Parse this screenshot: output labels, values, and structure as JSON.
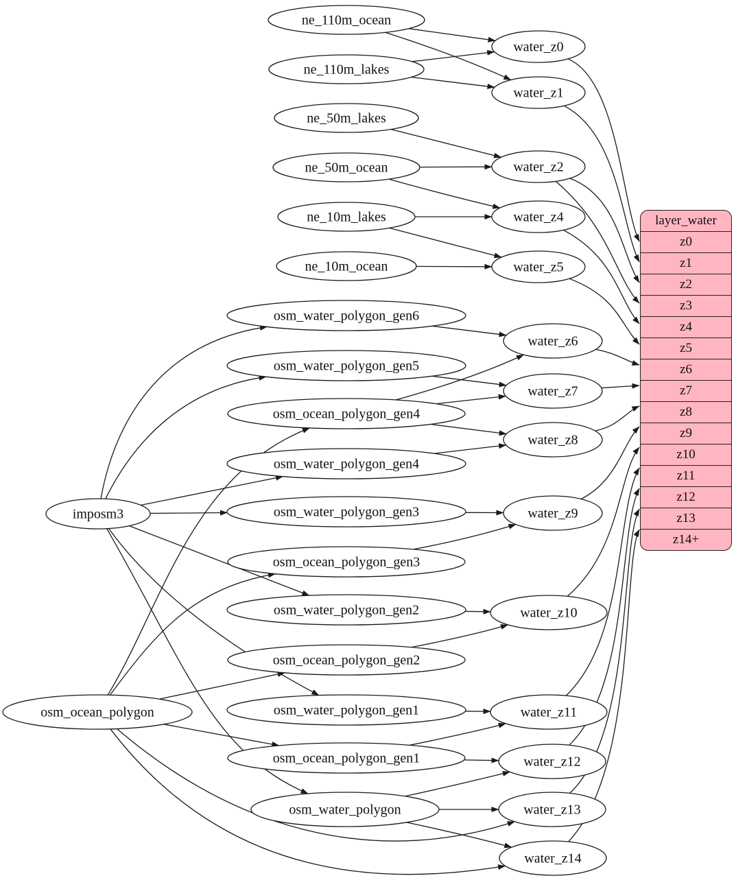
{
  "nodes": [
    {
      "id": "ne_110m_ocean",
      "label": "ne_110m_ocean"
    },
    {
      "id": "ne_110m_lakes",
      "label": "ne_110m_lakes"
    },
    {
      "id": "ne_50m_lakes",
      "label": "ne_50m_lakes"
    },
    {
      "id": "ne_50m_ocean",
      "label": "ne_50m_ocean"
    },
    {
      "id": "ne_10m_lakes",
      "label": "ne_10m_lakes"
    },
    {
      "id": "ne_10m_ocean",
      "label": "ne_10m_ocean"
    },
    {
      "id": "osm_water_polygon_gen6",
      "label": "osm_water_polygon_gen6"
    },
    {
      "id": "osm_water_polygon_gen5",
      "label": "osm_water_polygon_gen5"
    },
    {
      "id": "osm_ocean_polygon_gen4",
      "label": "osm_ocean_polygon_gen4"
    },
    {
      "id": "osm_water_polygon_gen4",
      "label": "osm_water_polygon_gen4"
    },
    {
      "id": "osm_water_polygon_gen3",
      "label": "osm_water_polygon_gen3"
    },
    {
      "id": "osm_ocean_polygon_gen3",
      "label": "osm_ocean_polygon_gen3"
    },
    {
      "id": "osm_water_polygon_gen2",
      "label": "osm_water_polygon_gen2"
    },
    {
      "id": "osm_ocean_polygon_gen2",
      "label": "osm_ocean_polygon_gen2"
    },
    {
      "id": "osm_water_polygon_gen1",
      "label": "osm_water_polygon_gen1"
    },
    {
      "id": "osm_ocean_polygon_gen1",
      "label": "osm_ocean_polygon_gen1"
    },
    {
      "id": "osm_water_polygon",
      "label": "osm_water_polygon"
    },
    {
      "id": "imposm3",
      "label": "imposm3"
    },
    {
      "id": "osm_ocean_polygon",
      "label": "osm_ocean_polygon"
    },
    {
      "id": "water_z0",
      "label": "water_z0"
    },
    {
      "id": "water_z1",
      "label": "water_z1"
    },
    {
      "id": "water_z2",
      "label": "water_z2"
    },
    {
      "id": "water_z4",
      "label": "water_z4"
    },
    {
      "id": "water_z5",
      "label": "water_z5"
    },
    {
      "id": "water_z6",
      "label": "water_z6"
    },
    {
      "id": "water_z7",
      "label": "water_z7"
    },
    {
      "id": "water_z8",
      "label": "water_z8"
    },
    {
      "id": "water_z9",
      "label": "water_z9"
    },
    {
      "id": "water_z10",
      "label": "water_z10"
    },
    {
      "id": "water_z11",
      "label": "water_z11"
    },
    {
      "id": "water_z12",
      "label": "water_z12"
    },
    {
      "id": "water_z13",
      "label": "water_z13"
    },
    {
      "id": "water_z14",
      "label": "water_z14"
    }
  ],
  "record": {
    "title": "layer_water",
    "rows": [
      "z0",
      "z1",
      "z2",
      "z3",
      "z4",
      "z5",
      "z6",
      "z7",
      "z8",
      "z9",
      "z10",
      "z11",
      "z12",
      "z13",
      "z14+"
    ]
  },
  "edges": [
    [
      "ne_110m_ocean",
      "water_z0"
    ],
    [
      "ne_110m_ocean",
      "water_z1"
    ],
    [
      "ne_110m_lakes",
      "water_z0"
    ],
    [
      "ne_110m_lakes",
      "water_z1"
    ],
    [
      "ne_50m_lakes",
      "water_z2"
    ],
    [
      "ne_50m_ocean",
      "water_z2"
    ],
    [
      "ne_50m_ocean",
      "water_z4"
    ],
    [
      "ne_10m_lakes",
      "water_z4"
    ],
    [
      "ne_10m_lakes",
      "water_z5"
    ],
    [
      "ne_10m_ocean",
      "water_z5"
    ],
    [
      "imposm3",
      "osm_water_polygon_gen6"
    ],
    [
      "imposm3",
      "osm_water_polygon_gen5"
    ],
    [
      "imposm3",
      "osm_water_polygon_gen4"
    ],
    [
      "imposm3",
      "osm_water_polygon_gen3"
    ],
    [
      "imposm3",
      "osm_water_polygon_gen2"
    ],
    [
      "imposm3",
      "osm_water_polygon_gen1"
    ],
    [
      "imposm3",
      "osm_water_polygon"
    ],
    [
      "osm_ocean_polygon",
      "osm_ocean_polygon_gen4"
    ],
    [
      "osm_ocean_polygon",
      "osm_ocean_polygon_gen3"
    ],
    [
      "osm_ocean_polygon",
      "osm_ocean_polygon_gen2"
    ],
    [
      "osm_ocean_polygon",
      "osm_ocean_polygon_gen1"
    ],
    [
      "osm_ocean_polygon",
      "water_z13"
    ],
    [
      "osm_ocean_polygon",
      "water_z14"
    ],
    [
      "osm_water_polygon_gen6",
      "water_z6"
    ],
    [
      "osm_water_polygon_gen5",
      "water_z7"
    ],
    [
      "osm_ocean_polygon_gen4",
      "water_z6"
    ],
    [
      "osm_ocean_polygon_gen4",
      "water_z7"
    ],
    [
      "osm_ocean_polygon_gen4",
      "water_z8"
    ],
    [
      "osm_water_polygon_gen4",
      "water_z8"
    ],
    [
      "osm_water_polygon_gen3",
      "water_z9"
    ],
    [
      "osm_ocean_polygon_gen3",
      "water_z9"
    ],
    [
      "osm_water_polygon_gen2",
      "water_z10"
    ],
    [
      "osm_ocean_polygon_gen2",
      "water_z10"
    ],
    [
      "osm_water_polygon_gen1",
      "water_z11"
    ],
    [
      "osm_ocean_polygon_gen1",
      "water_z11"
    ],
    [
      "osm_ocean_polygon_gen1",
      "water_z12"
    ],
    [
      "osm_water_polygon",
      "water_z12"
    ],
    [
      "osm_water_polygon",
      "water_z13"
    ],
    [
      "osm_water_polygon",
      "water_z14"
    ],
    [
      "water_z0",
      "row:z0"
    ],
    [
      "water_z1",
      "row:z1"
    ],
    [
      "water_z2",
      "row:z2"
    ],
    [
      "water_z2",
      "row:z3"
    ],
    [
      "water_z4",
      "row:z4"
    ],
    [
      "water_z5",
      "row:z5"
    ],
    [
      "water_z6",
      "row:z6"
    ],
    [
      "water_z7",
      "row:z7"
    ],
    [
      "water_z8",
      "row:z8"
    ],
    [
      "water_z9",
      "row:z9"
    ],
    [
      "water_z10",
      "row:z10"
    ],
    [
      "water_z11",
      "row:z11"
    ],
    [
      "water_z12",
      "row:z12"
    ],
    [
      "water_z13",
      "row:z13"
    ],
    [
      "water_z14",
      "row:z14+"
    ]
  ],
  "colors": {
    "node_fill": "#ffffff",
    "record_fill": "#ffb6c1",
    "stroke": "#1a1a1a",
    "text": "#111111"
  }
}
